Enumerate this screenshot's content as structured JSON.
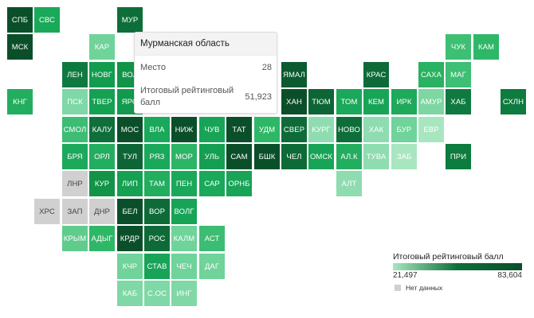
{
  "map": {
    "regions": [
      {
        "label": "СПБ",
        "col": 0,
        "row": 0,
        "color": "#0b4f2a",
        "text": "#ffffff"
      },
      {
        "label": "СВС",
        "col": 1,
        "row": 0,
        "color": "#1aa85a",
        "text": "#ffffff"
      },
      {
        "label": "МУР",
        "col": 4,
        "row": 0,
        "color": "#0e6e3a",
        "text": "#ffffff"
      },
      {
        "label": "МСК",
        "col": 0,
        "row": 1,
        "color": "#0b4f2a",
        "text": "#ffffff"
      },
      {
        "label": "КАР",
        "col": 3,
        "row": 1,
        "color": "#6fd39a",
        "text": "#ffffff"
      },
      {
        "label": "ЧУК",
        "col": 16,
        "row": 1,
        "color": "#3dbf74",
        "text": "#ffffff"
      },
      {
        "label": "КАМ",
        "col": 17,
        "row": 1,
        "color": "#2fb768",
        "text": "#ffffff"
      },
      {
        "label": "ЛЕН",
        "col": 2,
        "row": 2,
        "color": "#0f7a40",
        "text": "#ffffff"
      },
      {
        "label": "НОВГ",
        "col": 3,
        "row": 2,
        "color": "#119c4e",
        "text": "#ffffff"
      },
      {
        "label": "ВОЛ",
        "col": 4,
        "row": 2,
        "color": "#129348",
        "text": "#ffffff"
      },
      {
        "label": "ЯМАЛ",
        "col": 10,
        "row": 2,
        "color": "#0b5a30",
        "text": "#ffffff"
      },
      {
        "label": "КРАС",
        "col": 13,
        "row": 2,
        "color": "#0e6b38",
        "text": "#ffffff"
      },
      {
        "label": "САХА",
        "col": 15,
        "row": 2,
        "color": "#28b262",
        "text": "#ffffff"
      },
      {
        "label": "МАГ",
        "col": 16,
        "row": 2,
        "color": "#3dbf74",
        "text": "#ffffff"
      },
      {
        "label": "КНГ",
        "col": 0,
        "row": 3,
        "color": "#23ad5f",
        "text": "#ffffff"
      },
      {
        "label": "ПСК",
        "col": 2,
        "row": 3,
        "color": "#7fd8a6",
        "text": "#ffffff"
      },
      {
        "label": "ТВЕР",
        "col": 3,
        "row": 3,
        "color": "#14a152",
        "text": "#ffffff"
      },
      {
        "label": "ЯРО",
        "col": 4,
        "row": 3,
        "color": "#119a4d",
        "text": "#ffffff"
      },
      {
        "label": "ХАН",
        "col": 10,
        "row": 3,
        "color": "#0b4f2a",
        "text": "#ffffff"
      },
      {
        "label": "ТЮМ",
        "col": 11,
        "row": 3,
        "color": "#0d6535",
        "text": "#ffffff"
      },
      {
        "label": "ТОМ",
        "col": 12,
        "row": 3,
        "color": "#1aa85a",
        "text": "#ffffff"
      },
      {
        "label": "КЕМ",
        "col": 13,
        "row": 3,
        "color": "#17a457",
        "text": "#ffffff"
      },
      {
        "label": "ИРК",
        "col": 14,
        "row": 3,
        "color": "#1ea95b",
        "text": "#ffffff"
      },
      {
        "label": "АМУР",
        "col": 15,
        "row": 3,
        "color": "#7ed6a3",
        "text": "#ffffff"
      },
      {
        "label": "ХАБ",
        "col": 16,
        "row": 3,
        "color": "#0f7a40",
        "text": "#ffffff"
      },
      {
        "label": "СХЛН",
        "col": 18,
        "row": 3,
        "color": "#0e7b3f",
        "text": "#ffffff"
      },
      {
        "label": "СМОЛ",
        "col": 2,
        "row": 4,
        "color": "#3cbd73",
        "text": "#ffffff"
      },
      {
        "label": "КАЛУ",
        "col": 3,
        "row": 4,
        "color": "#0f6f3b",
        "text": "#ffffff"
      },
      {
        "label": "МОС",
        "col": 4,
        "row": 4,
        "color": "#0b4f2a",
        "text": "#ffffff"
      },
      {
        "label": "ВЛА",
        "col": 5,
        "row": 4,
        "color": "#1aa85a",
        "text": "#ffffff"
      },
      {
        "label": "НИЖ",
        "col": 6,
        "row": 4,
        "color": "#0b4f2a",
        "text": "#ffffff"
      },
      {
        "label": "ЧУВ",
        "col": 7,
        "row": 4,
        "color": "#17a457",
        "text": "#ffffff"
      },
      {
        "label": "ТАТ",
        "col": 8,
        "row": 4,
        "color": "#0b4f2a",
        "text": "#ffffff"
      },
      {
        "label": "УДМ",
        "col": 9,
        "row": 4,
        "color": "#2fb768",
        "text": "#ffffff"
      },
      {
        "label": "СВЕР",
        "col": 10,
        "row": 4,
        "color": "#0e6b38",
        "text": "#ffffff"
      },
      {
        "label": "КУРГ",
        "col": 11,
        "row": 4,
        "color": "#8fdcb0",
        "text": "#ffffff"
      },
      {
        "label": "НОВО",
        "col": 12,
        "row": 4,
        "color": "#0e6e3a",
        "text": "#ffffff"
      },
      {
        "label": "ХАК",
        "col": 13,
        "row": 4,
        "color": "#8fdcb0",
        "text": "#ffffff"
      },
      {
        "label": "БУР",
        "col": 14,
        "row": 4,
        "color": "#6fd39a",
        "text": "#ffffff"
      },
      {
        "label": "ЕВР",
        "col": 15,
        "row": 4,
        "color": "#a8e6c0",
        "text": "#ffffff"
      },
      {
        "label": "БРЯ",
        "col": 2,
        "row": 5,
        "color": "#1da95c",
        "text": "#ffffff"
      },
      {
        "label": "ОРЛ",
        "col": 3,
        "row": 5,
        "color": "#23ad5f",
        "text": "#ffffff"
      },
      {
        "label": "ТУЛ",
        "col": 4,
        "row": 5,
        "color": "#0d6535",
        "text": "#ffffff"
      },
      {
        "label": "РЯЗ",
        "col": 5,
        "row": 5,
        "color": "#1aa85a",
        "text": "#ffffff"
      },
      {
        "label": "МОР",
        "col": 6,
        "row": 5,
        "color": "#2db566",
        "text": "#ffffff"
      },
      {
        "label": "УЛЬ",
        "col": 7,
        "row": 5,
        "color": "#159f52",
        "text": "#ffffff"
      },
      {
        "label": "САМ",
        "col": 8,
        "row": 5,
        "color": "#0b4f2a",
        "text": "#ffffff"
      },
      {
        "label": "БШК",
        "col": 9,
        "row": 5,
        "color": "#0b4f2a",
        "text": "#ffffff"
      },
      {
        "label": "ЧЕЛ",
        "col": 10,
        "row": 5,
        "color": "#0e6b38",
        "text": "#ffffff"
      },
      {
        "label": "ОМСК",
        "col": 11,
        "row": 5,
        "color": "#17a457",
        "text": "#ffffff"
      },
      {
        "label": "АЛ.К",
        "col": 12,
        "row": 5,
        "color": "#23ad5f",
        "text": "#ffffff"
      },
      {
        "label": "ТУВА",
        "col": 13,
        "row": 5,
        "color": "#8fdcb0",
        "text": "#ffffff"
      },
      {
        "label": "ЗАБ",
        "col": 14,
        "row": 5,
        "color": "#a8e6c0",
        "text": "#ffffff"
      },
      {
        "label": "ПРИ",
        "col": 16,
        "row": 5,
        "color": "#0e7b3f",
        "text": "#ffffff"
      },
      {
        "label": "ЛНР",
        "col": 2,
        "row": 6,
        "color": "#d0d0d0",
        "text": "#444444"
      },
      {
        "label": "КУР",
        "col": 3,
        "row": 6,
        "color": "#129348",
        "text": "#ffffff"
      },
      {
        "label": "ЛИП",
        "col": 4,
        "row": 6,
        "color": "#15a052",
        "text": "#ffffff"
      },
      {
        "label": "ТАМ",
        "col": 5,
        "row": 6,
        "color": "#23ad5f",
        "text": "#ffffff"
      },
      {
        "label": "ПЕН",
        "col": 6,
        "row": 6,
        "color": "#1aa85a",
        "text": "#ffffff"
      },
      {
        "label": "САР",
        "col": 7,
        "row": 6,
        "color": "#1aa85a",
        "text": "#ffffff"
      },
      {
        "label": "ОРНБ",
        "col": 8,
        "row": 6,
        "color": "#17a457",
        "text": "#ffffff"
      },
      {
        "label": "АЛТ",
        "col": 12,
        "row": 6,
        "color": "#8fdcb0",
        "text": "#ffffff"
      },
      {
        "label": "ХРС",
        "col": 1,
        "row": 7,
        "color": "#d0d0d0",
        "text": "#444444"
      },
      {
        "label": "ЗАП",
        "col": 2,
        "row": 7,
        "color": "#d0d0d0",
        "text": "#444444"
      },
      {
        "label": "ДНР",
        "col": 3,
        "row": 7,
        "color": "#d0d0d0",
        "text": "#444444"
      },
      {
        "label": "БЕЛ",
        "col": 4,
        "row": 7,
        "color": "#0b4f2a",
        "text": "#ffffff"
      },
      {
        "label": "ВОР",
        "col": 5,
        "row": 7,
        "color": "#0e6b38",
        "text": "#ffffff"
      },
      {
        "label": "ВОЛГ",
        "col": 6,
        "row": 7,
        "color": "#17a457",
        "text": "#ffffff"
      },
      {
        "label": "КРЫМ",
        "col": 2,
        "row": 8,
        "color": "#5fcc8c",
        "text": "#ffffff"
      },
      {
        "label": "АДЫГ",
        "col": 3,
        "row": 8,
        "color": "#2fb768",
        "text": "#ffffff"
      },
      {
        "label": "КРДР",
        "col": 4,
        "row": 8,
        "color": "#0b4f2a",
        "text": "#ffffff"
      },
      {
        "label": "РОС",
        "col": 5,
        "row": 8,
        "color": "#0e6b38",
        "text": "#ffffff"
      },
      {
        "label": "КАЛМ",
        "col": 6,
        "row": 8,
        "color": "#6fd39a",
        "text": "#ffffff"
      },
      {
        "label": "АСТ",
        "col": 7,
        "row": 8,
        "color": "#3cbd73",
        "text": "#ffffff"
      },
      {
        "label": "КЧР",
        "col": 4,
        "row": 9,
        "color": "#6fd39a",
        "text": "#ffffff"
      },
      {
        "label": "СТАВ",
        "col": 5,
        "row": 9,
        "color": "#17a457",
        "text": "#ffffff"
      },
      {
        "label": "ЧЕЧ",
        "col": 6,
        "row": 9,
        "color": "#6fd39a",
        "text": "#ffffff"
      },
      {
        "label": "ДАГ",
        "col": 7,
        "row": 9,
        "color": "#6fd39a",
        "text": "#ffffff"
      },
      {
        "label": "КАБ",
        "col": 4,
        "row": 10,
        "color": "#7fd8a6",
        "text": "#ffffff"
      },
      {
        "label": "С.ОС",
        "col": 5,
        "row": 10,
        "color": "#7fd8a6",
        "text": "#ffffff"
      },
      {
        "label": "ИНГ",
        "col": 6,
        "row": 10,
        "color": "#7fd8a6",
        "text": "#ffffff"
      }
    ]
  },
  "tooltip": {
    "title": "Мурманская область",
    "place_label": "Место",
    "place_value": "28",
    "score_label": "Итоговый рейтинговый балл",
    "score_value": "51,923"
  },
  "legend": {
    "title": "Итоговый рейтинговый балл",
    "min": "21,497",
    "max": "83,604",
    "nodata_label": "Нет данных",
    "colors": {
      "low": "#a8e6c0",
      "high": "#0b4f2a",
      "nodata": "#d0d0d0"
    }
  }
}
